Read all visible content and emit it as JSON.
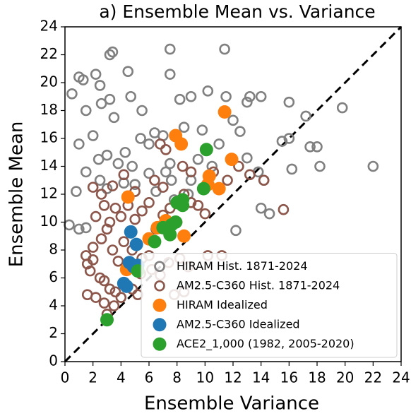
{
  "chart_data": {
    "type": "scatter",
    "title": "a) Ensemble Mean vs. Variance",
    "xlabel": "Ensemble Variance",
    "ylabel": "Ensemble Mean",
    "xlim": [
      0,
      24
    ],
    "ylim": [
      0,
      24
    ],
    "xticks": [
      0,
      2,
      4,
      6,
      8,
      10,
      12,
      14,
      16,
      18,
      20,
      22,
      24
    ],
    "yticks": [
      0,
      2,
      4,
      6,
      8,
      10,
      12,
      14,
      16,
      18,
      20,
      22,
      24
    ],
    "grid": false,
    "legend": "lower right",
    "series": [
      {
        "name": "HIRAM Hist. 1871-2024",
        "color": "#808080",
        "marker": "hollow",
        "x": [
          0.5,
          1,
          1.3,
          2.2,
          2.5,
          3.2,
          3.4,
          4.5,
          7.5,
          11.4,
          1.5,
          2.6,
          3.2,
          4.7,
          5.5,
          7.5,
          8.2,
          9,
          10.2,
          11.5,
          13,
          13.2,
          14,
          16,
          17.2,
          19.8,
          2,
          3.5,
          5.4,
          6,
          6.4,
          7,
          8.5,
          9.8,
          12,
          12.5,
          15.5,
          16,
          17.5,
          18,
          16.2,
          18.2,
          22,
          14,
          14.6,
          12.2,
          1,
          2.4,
          3,
          3.8,
          4.3,
          4.8,
          6,
          7.2,
          7.5,
          9,
          9.5,
          10.5,
          11,
          13,
          13.8,
          14.2,
          1.5,
          2.5,
          0.8,
          0.3,
          1,
          1.5,
          4.2,
          5,
          6.5,
          7.6,
          8.8,
          10,
          3,
          7.8
        ],
        "values": [
          19.2,
          20.4,
          20.2,
          20.6,
          19.8,
          22,
          22.2,
          20.8,
          22.4,
          22.4,
          18,
          18.5,
          18.8,
          19,
          18,
          20.6,
          18.8,
          19,
          19.4,
          19,
          18.6,
          19,
          19,
          18.6,
          17.6,
          18.2,
          16.2,
          17.5,
          16,
          15.6,
          16.4,
          16.2,
          16.8,
          16.6,
          17.3,
          16.5,
          15.8,
          16,
          15.4,
          15.4,
          13.8,
          14,
          14,
          11,
          10.6,
          9.4,
          15.6,
          14.5,
          14.8,
          14.2,
          15,
          14,
          13.5,
          13.6,
          14.2,
          13,
          14.5,
          14,
          15.6,
          14.6,
          13.6,
          13,
          13.6,
          13,
          12.2,
          9.8,
          9.5,
          9.6,
          12.8,
          12.7,
          12.2,
          13,
          12,
          12.4,
          12.4,
          11.6
        ]
      },
      {
        "name": "AM2.5-C360 Hist. 1871-2024",
        "color": "#8c564b",
        "marker": "hollow",
        "x": [
          1.5,
          1.6,
          1.8,
          2,
          2.5,
          2.8,
          3.2,
          3.6,
          1.6,
          2.2,
          2.8,
          3.5,
          4,
          4.8,
          5.2,
          2,
          2.6,
          3,
          3.4,
          3.8,
          4.2,
          4.8,
          5.5,
          6.2,
          6.8,
          7.4,
          8.2,
          8.8,
          10.2,
          11.2,
          8.5,
          7.8,
          2.2,
          2.8,
          3.2,
          3.6,
          4,
          4.5,
          5,
          5.5,
          6,
          6.5,
          7,
          7.5,
          8,
          8.5,
          9,
          9.5,
          10,
          2,
          2.6,
          3.4,
          4.2,
          5,
          6.4,
          7,
          7.2,
          6.8,
          8.4,
          9,
          10.6,
          11.6,
          12.4,
          13.2,
          14.2,
          15.6,
          3,
          5.4,
          6,
          4.4
        ],
        "values": [
          7.6,
          7,
          6.5,
          7.3,
          6,
          5.8,
          5.2,
          5,
          4.8,
          4.6,
          4.2,
          4,
          4.6,
          5.2,
          4.8,
          8.2,
          8.8,
          9.5,
          8,
          7.2,
          8.6,
          8,
          7.4,
          6.6,
          6.2,
          7.1,
          7.4,
          6.8,
          7.6,
          7.6,
          5,
          4.8,
          10.4,
          11.2,
          10,
          11,
          10.4,
          11.2,
          10.2,
          10.8,
          11.4,
          9.5,
          10.5,
          11,
          10,
          12,
          11.4,
          11.2,
          10.6,
          12.5,
          12,
          12.6,
          13.4,
          12.2,
          13,
          12.5,
          15.2,
          15.6,
          14,
          13.6,
          13.6,
          13,
          14,
          13.4,
          13,
          10.9,
          3.4,
          6.3,
          7.6,
          6.8
        ]
      },
      {
        "name": "HIRAM Idealized",
        "color": "#ff7f0e",
        "marker": "filled",
        "x": [
          4.5,
          7.9,
          8.3,
          11.4,
          11.9,
          10.3,
          10.2,
          11,
          8.5,
          6.6,
          4.4,
          6,
          7.2
        ],
        "values": [
          11.8,
          16.2,
          15.6,
          17.9,
          14.5,
          13.3,
          12.7,
          12.4,
          9,
          9.6,
          6.6,
          8.8,
          10.1
        ]
      },
      {
        "name": "AM2.5-C360 Idealized",
        "color": "#1f77b4",
        "marker": "filled",
        "x": [
          4.7,
          5.1,
          4.6,
          4.9,
          4.2,
          4.4,
          5.2
        ],
        "values": [
          9.3,
          8.4,
          7.1,
          6.8,
          5.6,
          5.4,
          6.9
        ]
      },
      {
        "name": "ACE2_1,000 (1982, 2005-2020)",
        "color": "#2ca02c",
        "marker": "filled",
        "x": [
          3,
          6.4,
          7,
          7.6,
          7.9,
          8,
          8.4,
          8.4,
          9.9,
          10.1,
          5.2,
          7.5
        ],
        "values": [
          3,
          8.6,
          9.6,
          9.8,
          10,
          11.4,
          11.2,
          11.6,
          12.4,
          15.2,
          6.5,
          9.1
        ]
      }
    ]
  }
}
